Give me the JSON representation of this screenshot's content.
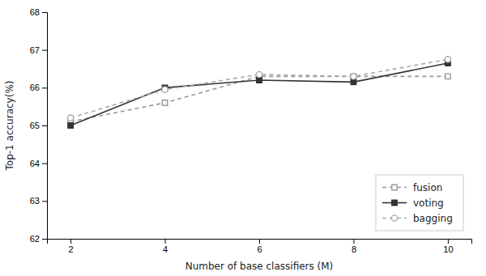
{
  "chart_data": {
    "type": "line",
    "xlabel": "Number of base classifiers (M)",
    "ylabel": "Top-1 accuracy(%)",
    "x": [
      2,
      4,
      6,
      8,
      10
    ],
    "series": [
      {
        "name": "fusion",
        "color": "#999999",
        "marker": "open-square",
        "line_style": "dashed",
        "values": [
          65.1,
          65.6,
          66.3,
          66.3,
          66.3
        ]
      },
      {
        "name": "voting",
        "color": "#333333",
        "marker": "square",
        "line_style": "solid",
        "values": [
          65.0,
          66.0,
          66.2,
          66.15,
          66.65
        ]
      },
      {
        "name": "bagging",
        "color": "#aaaaaa",
        "marker": "open-circle",
        "line_style": "dashed",
        "values": [
          65.2,
          65.95,
          66.35,
          66.3,
          66.75
        ]
      }
    ],
    "xlim": [
      1.5,
      10.5
    ],
    "ylim": [
      62,
      68
    ],
    "xticks": [
      2,
      4,
      6,
      8,
      10
    ],
    "yticks": [
      62,
      63,
      64,
      65,
      66,
      67,
      68
    ],
    "grid": false,
    "legend": "lower right"
  }
}
